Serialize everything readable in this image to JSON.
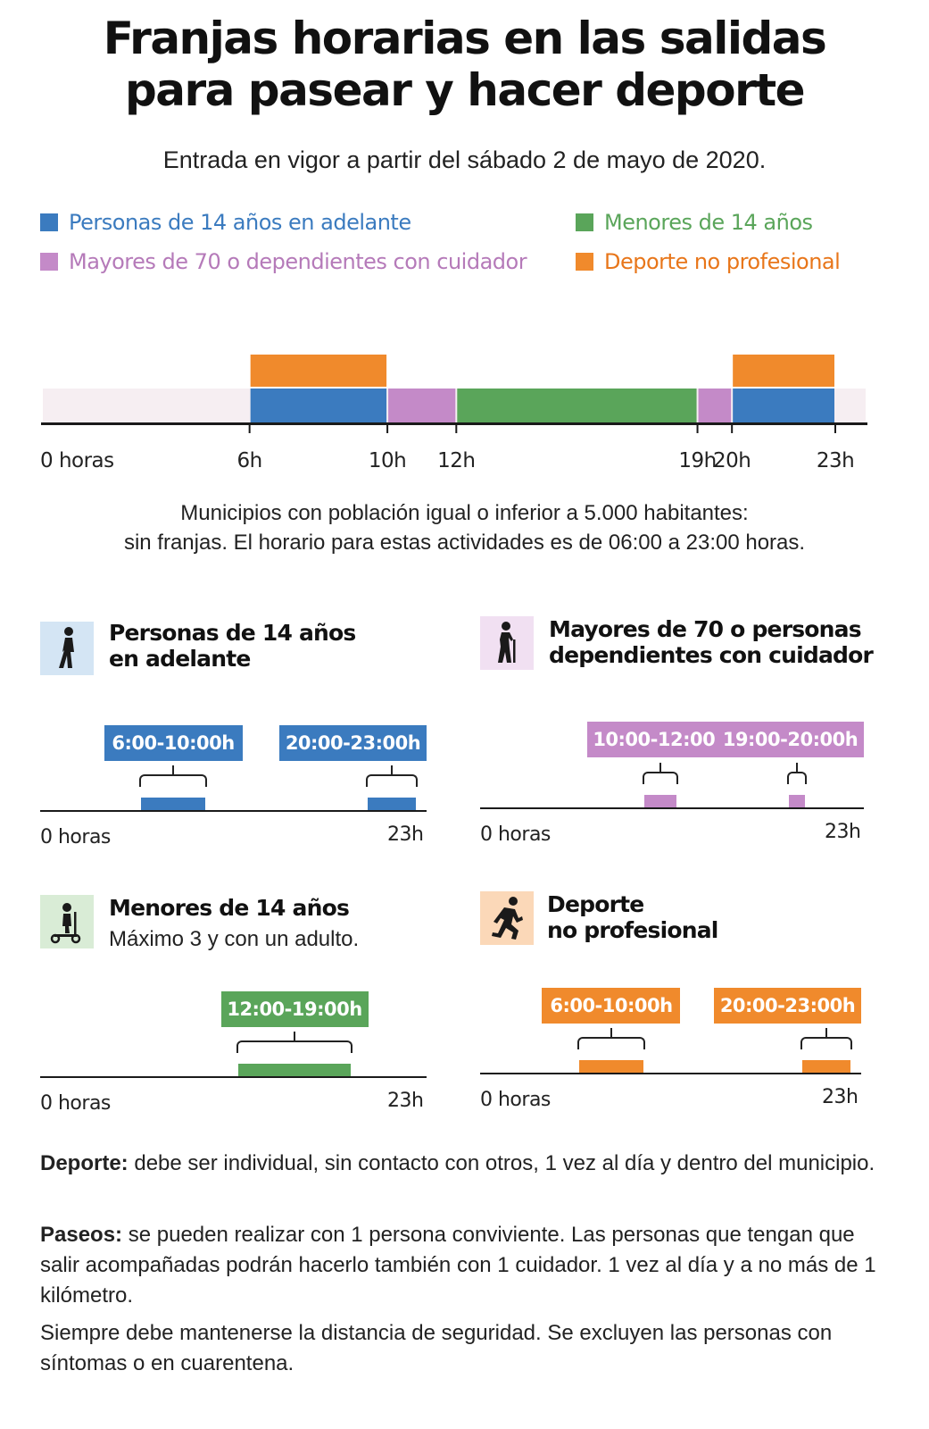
{
  "header": {
    "title_line1": "Franjas horarias en las salidas",
    "title_line2": "para pasear y hacer deporte",
    "subtitle": "Entrada en vigor a partir del sábado 2 de mayo de 2020."
  },
  "legend": [
    {
      "label": "Personas de 14 años en adelante",
      "color": "#3b7bbf"
    },
    {
      "label": "Menores de 14 años",
      "color": "#5aa55a"
    },
    {
      "label": "Mayores de 70 o dependientes con cuidador",
      "color": "#c48ac8"
    },
    {
      "label": "Deporte no profesional",
      "color": "#f08a2c"
    }
  ],
  "colors": {
    "blue": "#3b7bbf",
    "green": "#5aa55a",
    "purple": "#c48ac8",
    "orange": "#f08a2c",
    "band": "#f6eef2"
  },
  "chart_data": {
    "type": "timeline",
    "x_unit": "hour",
    "x_range": [
      0,
      23
    ],
    "tick_labels": [
      "0 horas",
      "6h",
      "10h",
      "12h",
      "19h",
      "20h",
      "23h"
    ],
    "ticks": [
      0,
      6,
      10,
      12,
      19,
      20,
      23
    ],
    "series": [
      {
        "name": "Personas de 14 años en adelante",
        "intervals": [
          [
            6,
            10
          ],
          [
            20,
            23
          ]
        ]
      },
      {
        "name": "Mayores de 70 o dependientes con cuidador",
        "intervals": [
          [
            10,
            12
          ],
          [
            19,
            20
          ]
        ]
      },
      {
        "name": "Menores de 14 años",
        "intervals": [
          [
            12,
            19
          ]
        ]
      },
      {
        "name": "Deporte no profesional",
        "intervals": [
          [
            6,
            10
          ],
          [
            20,
            23
          ]
        ]
      }
    ]
  },
  "note": {
    "line1": "Municipios con población igual o inferior a 5.000 habitantes:",
    "line2": "sin franjas. El horario para estas actividades es de 06:00 a 23:00 horas."
  },
  "panels": [
    {
      "title_line1": "Personas de 14 años",
      "title_line2": "en adelante",
      "icon": "walking-person-icon",
      "badges": [
        "6:00-10:00h",
        "20:00-23:00h"
      ],
      "intervals": [
        [
          6,
          10
        ],
        [
          20,
          23
        ]
      ],
      "axis_start": "0 horas",
      "axis_end": "23h"
    },
    {
      "title_line1": "Mayores de 70 o personas",
      "title_line2": "dependientes con cuidador",
      "icon": "elderly-cane-icon",
      "badges": [
        "10:00-12:00h",
        "19:00-20:00h"
      ],
      "intervals": [
        [
          10,
          12
        ],
        [
          19,
          20
        ]
      ],
      "axis_start": "0 horas",
      "axis_end": "23h"
    },
    {
      "title_line1": "Menores de 14 años",
      "subtitle": "Máximo 3 y con un adulto.",
      "icon": "child-scooter-icon",
      "badges": [
        "12:00-19:00h"
      ],
      "intervals": [
        [
          12,
          19
        ]
      ],
      "axis_start": "0 horas",
      "axis_end": "23h"
    },
    {
      "title_line1": "Deporte",
      "title_line2": "no profesional",
      "icon": "runner-icon",
      "badges": [
        "6:00-10:00h",
        "20:00-23:00h"
      ],
      "intervals": [
        [
          6,
          10
        ],
        [
          20,
          23
        ]
      ],
      "axis_start": "0 horas",
      "axis_end": "23h"
    }
  ],
  "footer": {
    "deporte_label": "Deporte:",
    "deporte_text": " debe ser individual, sin contacto con otros, 1 vez al día y dentro del municipio.",
    "paseos_label": "Paseos:",
    "paseos_text": " se pueden realizar con 1 persona conviviente. Las personas que tengan que salir acompañadas podrán hacerlo también con 1 cuidador. 1 vez al día y a no más de 1 kilómetro.",
    "safety_text": "Siempre debe mantenerse la distancia de seguridad. Se excluyen las personas con síntomas o en cuarentena."
  }
}
